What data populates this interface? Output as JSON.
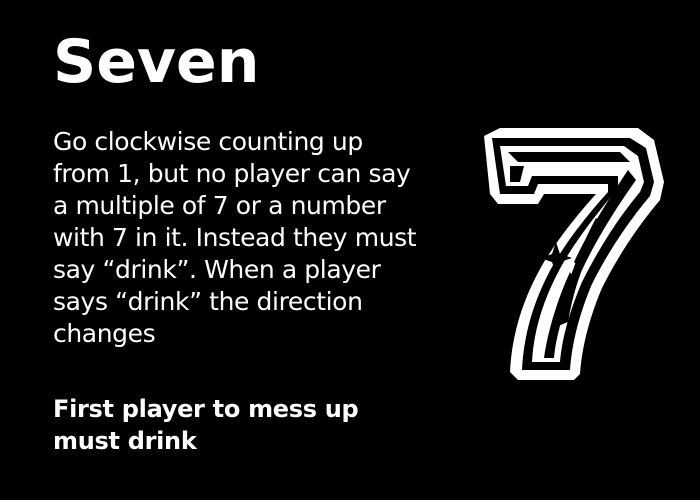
{
  "card": {
    "title": "Seven",
    "rule_lines": [
      "Go clockwise counting up",
      "from 1, but no player can say",
      "a multiple of 7 or a number",
      "with 7 in it. Instead they must",
      "say “drink”. When a player",
      "says “drink” the direction",
      "changes"
    ],
    "penalty_lines": [
      "First player to mess up",
      "must drink"
    ],
    "illustration": {
      "glyph": "7",
      "icon": "lucky-seven-icon",
      "colors": {
        "background": "#000000",
        "foreground": "#ffffff"
      }
    }
  }
}
